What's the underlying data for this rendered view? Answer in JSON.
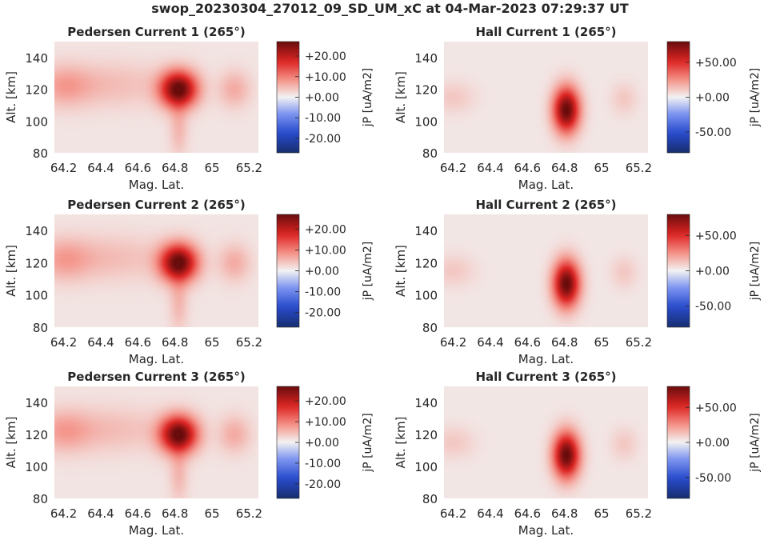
{
  "figure_title": "swop_20230304_27012_09_SD_UM_xC at 04-Mar-2023 07:29:37 UT",
  "colors": {
    "colormap_low": "#18306e",
    "colormap_mid": "#f2f2f2",
    "colormap_high": "#6b0d0d",
    "text": "#262626"
  },
  "chart_data": [
    {
      "type": "heatmap",
      "title": "Pedersen Current 1 (265°)",
      "xlabel": "Mag. Lat.",
      "ylabel": "Alt. [km]",
      "xlim": [
        64.15,
        65.25
      ],
      "ylim": [
        80,
        150
      ],
      "xticks": [
        "64.2",
        "64.4",
        "64.6",
        "64.8",
        "65",
        "65.2"
      ],
      "yticks": [
        "80",
        "100",
        "120",
        "140"
      ],
      "colorbar_label": "jP [uA/m2]",
      "clim": [
        -27,
        27
      ],
      "colorbar_ticks": [
        "+20.00",
        "+10.00",
        "+0.00",
        "-10.00",
        "-20.00"
      ],
      "background_value": 1.2,
      "features": [
        {
          "lat": 64.82,
          "alt": 120,
          "peak": 26,
          "sigma_lat": 0.07,
          "sigma_alt": 8
        },
        {
          "lat": 64.2,
          "alt": 122,
          "peak": 5,
          "sigma_lat": 0.1,
          "sigma_alt": 9
        },
        {
          "lat": 64.45,
          "alt": 123,
          "peak": 3.5,
          "sigma_lat": 0.22,
          "sigma_alt": 10
        },
        {
          "lat": 65.12,
          "alt": 120,
          "peak": 5,
          "sigma_lat": 0.06,
          "sigma_alt": 8
        },
        {
          "lat": 64.82,
          "alt": 95,
          "peak": 4,
          "sigma_lat": 0.035,
          "sigma_alt": 12
        }
      ]
    },
    {
      "type": "heatmap",
      "title": "Hall Current 1 (265°)",
      "xlabel": "Mag. Lat.",
      "ylabel": "Alt. [km]",
      "xlim": [
        64.15,
        65.25
      ],
      "ylim": [
        80,
        150
      ],
      "xticks": [
        "64.2",
        "64.4",
        "64.6",
        "64.8",
        "65",
        "65.2"
      ],
      "yticks": [
        "80",
        "100",
        "120",
        "140"
      ],
      "colorbar_label": "jP [uA/m2]",
      "clim": [
        -80,
        80
      ],
      "colorbar_ticks": [
        "+50.00",
        "+0.00",
        "-50.00"
      ],
      "background_value": 3,
      "features": [
        {
          "lat": 64.81,
          "alt": 107,
          "peak": 78,
          "sigma_lat": 0.05,
          "sigma_alt": 10
        },
        {
          "lat": 64.2,
          "alt": 115,
          "peak": 8,
          "sigma_lat": 0.08,
          "sigma_alt": 7
        },
        {
          "lat": 65.12,
          "alt": 114,
          "peak": 8,
          "sigma_lat": 0.05,
          "sigma_alt": 7
        }
      ]
    },
    {
      "type": "heatmap",
      "title": "Pedersen Current 2 (265°)",
      "xlabel": "Mag. Lat.",
      "ylabel": "Alt. [km]",
      "xlim": [
        64.15,
        65.25
      ],
      "ylim": [
        80,
        150
      ],
      "xticks": [
        "64.2",
        "64.4",
        "64.6",
        "64.8",
        "65",
        "65.2"
      ],
      "yticks": [
        "80",
        "100",
        "120",
        "140"
      ],
      "colorbar_label": "jP [uA/m2]",
      "clim": [
        -27,
        27
      ],
      "colorbar_ticks": [
        "+20.00",
        "+10.00",
        "+0.00",
        "-10.00",
        "-20.00"
      ],
      "background_value": 1.2,
      "features": [
        {
          "lat": 64.82,
          "alt": 120,
          "peak": 26,
          "sigma_lat": 0.07,
          "sigma_alt": 8
        },
        {
          "lat": 64.2,
          "alt": 122,
          "peak": 5,
          "sigma_lat": 0.1,
          "sigma_alt": 9
        },
        {
          "lat": 64.45,
          "alt": 123,
          "peak": 3.5,
          "sigma_lat": 0.22,
          "sigma_alt": 10
        },
        {
          "lat": 65.12,
          "alt": 120,
          "peak": 5,
          "sigma_lat": 0.06,
          "sigma_alt": 8
        },
        {
          "lat": 64.82,
          "alt": 95,
          "peak": 4,
          "sigma_lat": 0.035,
          "sigma_alt": 12
        }
      ]
    },
    {
      "type": "heatmap",
      "title": "Hall Current 2 (265°)",
      "xlabel": "Mag. Lat.",
      "ylabel": "Alt. [km]",
      "xlim": [
        64.15,
        65.25
      ],
      "ylim": [
        80,
        150
      ],
      "xticks": [
        "64.2",
        "64.4",
        "64.6",
        "64.8",
        "65",
        "65.2"
      ],
      "yticks": [
        "80",
        "100",
        "120",
        "140"
      ],
      "colorbar_label": "jP [uA/m2]",
      "clim": [
        -80,
        80
      ],
      "colorbar_ticks": [
        "+50.00",
        "+0.00",
        "-50.00"
      ],
      "background_value": 3,
      "features": [
        {
          "lat": 64.81,
          "alt": 107,
          "peak": 78,
          "sigma_lat": 0.05,
          "sigma_alt": 10
        },
        {
          "lat": 64.2,
          "alt": 115,
          "peak": 8,
          "sigma_lat": 0.08,
          "sigma_alt": 7
        },
        {
          "lat": 65.12,
          "alt": 114,
          "peak": 8,
          "sigma_lat": 0.05,
          "sigma_alt": 7
        }
      ]
    },
    {
      "type": "heatmap",
      "title": "Pedersen Current 3 (265°)",
      "xlabel": "Mag. Lat.",
      "ylabel": "Alt. [km]",
      "xlim": [
        64.15,
        65.25
      ],
      "ylim": [
        80,
        150
      ],
      "xticks": [
        "64.2",
        "64.4",
        "64.6",
        "64.8",
        "65",
        "65.2"
      ],
      "yticks": [
        "80",
        "100",
        "120",
        "140"
      ],
      "colorbar_label": "jP [uA/m2]",
      "clim": [
        -27,
        27
      ],
      "colorbar_ticks": [
        "+20.00",
        "+10.00",
        "+0.00",
        "-10.00",
        "-20.00"
      ],
      "background_value": 1.2,
      "features": [
        {
          "lat": 64.82,
          "alt": 120,
          "peak": 26,
          "sigma_lat": 0.07,
          "sigma_alt": 8
        },
        {
          "lat": 64.2,
          "alt": 122,
          "peak": 5,
          "sigma_lat": 0.1,
          "sigma_alt": 9
        },
        {
          "lat": 64.45,
          "alt": 123,
          "peak": 3.5,
          "sigma_lat": 0.22,
          "sigma_alt": 10
        },
        {
          "lat": 65.12,
          "alt": 120,
          "peak": 5,
          "sigma_lat": 0.06,
          "sigma_alt": 8
        },
        {
          "lat": 64.82,
          "alt": 95,
          "peak": 4,
          "sigma_lat": 0.035,
          "sigma_alt": 12
        }
      ]
    },
    {
      "type": "heatmap",
      "title": "Hall Current 3 (265°)",
      "xlabel": "Mag. Lat.",
      "ylabel": "Alt. [km]",
      "xlim": [
        64.15,
        65.25
      ],
      "ylim": [
        80,
        150
      ],
      "xticks": [
        "64.2",
        "64.4",
        "64.6",
        "64.8",
        "65",
        "65.2"
      ],
      "yticks": [
        "80",
        "100",
        "120",
        "140"
      ],
      "colorbar_label": "jP [uA/m2]",
      "clim": [
        -80,
        80
      ],
      "colorbar_ticks": [
        "+50.00",
        "+0.00",
        "-50.00"
      ],
      "background_value": 3,
      "features": [
        {
          "lat": 64.81,
          "alt": 107,
          "peak": 78,
          "sigma_lat": 0.05,
          "sigma_alt": 10
        },
        {
          "lat": 64.2,
          "alt": 115,
          "peak": 8,
          "sigma_lat": 0.08,
          "sigma_alt": 7
        },
        {
          "lat": 65.12,
          "alt": 114,
          "peak": 8,
          "sigma_lat": 0.05,
          "sigma_alt": 7
        }
      ]
    }
  ]
}
